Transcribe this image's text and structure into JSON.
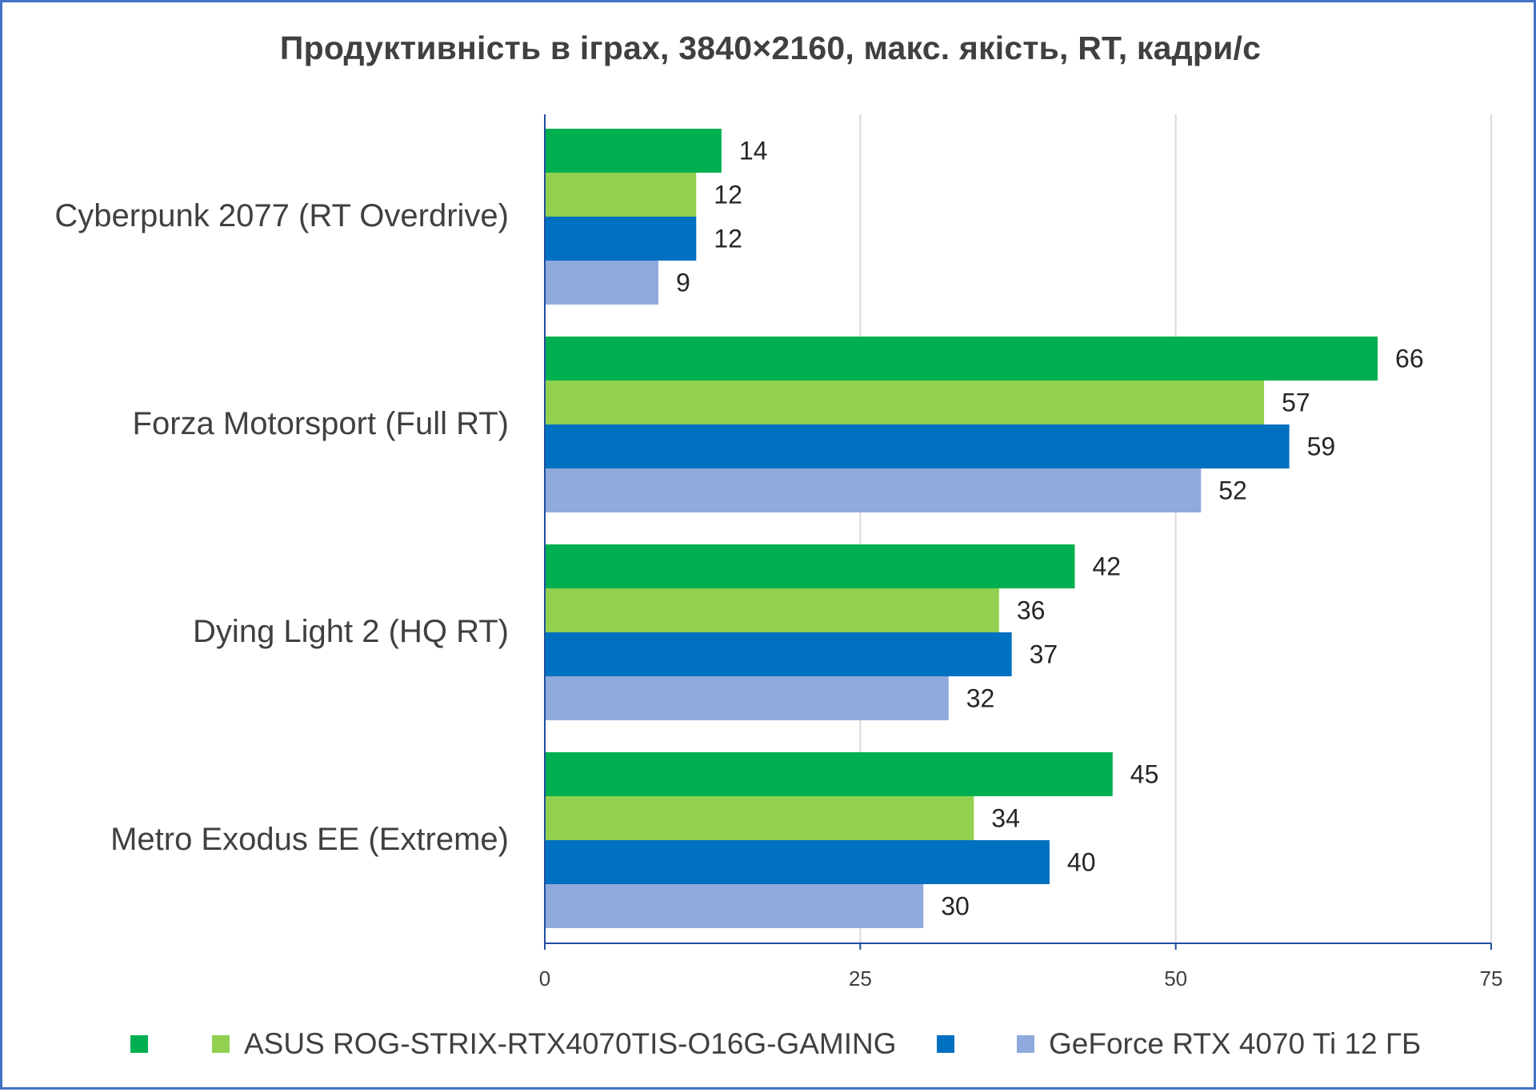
{
  "chart_data": {
    "type": "bar",
    "orientation": "horizontal",
    "title": "Продуктивність в іграх, 3840×2160, макс. якість, RT, кадри/с",
    "categories": [
      "Cyberpunk 2077 (RT Overdrive)",
      "Forza Motorsport (Full RT)",
      "Dying Light 2 (HQ RT)",
      "Metro Exodus EE (Extreme)"
    ],
    "series": [
      {
        "name": "",
        "color": "#00b050",
        "values": [
          14,
          66,
          42,
          45
        ]
      },
      {
        "name": "ASUS ROG-STRIX-RTX4070TIS-O16G-GAMING",
        "color": "#92d050",
        "values": [
          12,
          57,
          36,
          34
        ]
      },
      {
        "name": "",
        "color": "#0070c0",
        "values": [
          12,
          59,
          37,
          40
        ]
      },
      {
        "name": "GeForce RTX 4070 Ti 12 ГБ",
        "color": "#8faadc",
        "values": [
          9,
          52,
          32,
          30
        ]
      }
    ],
    "xlim": [
      0,
      75
    ],
    "xticks": [
      "0",
      "25",
      "50",
      "75"
    ],
    "grid": true,
    "legend_position": "bottom"
  }
}
